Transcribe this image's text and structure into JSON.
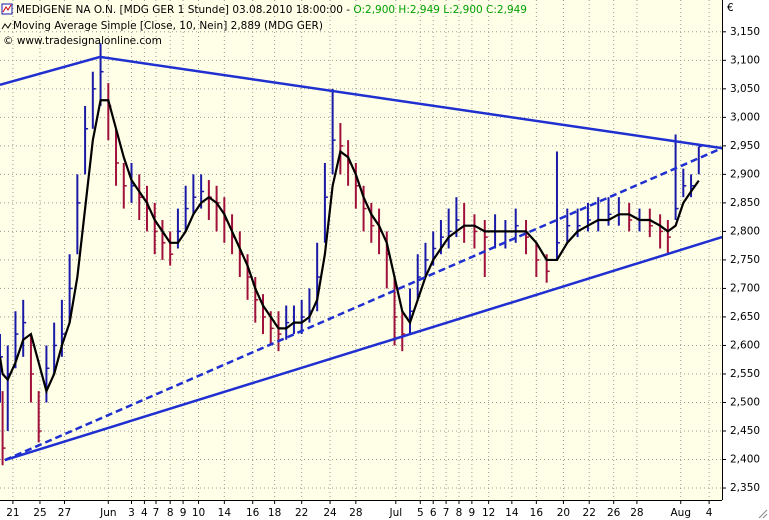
{
  "chart_data": {
    "type": "ohlc",
    "title": "MEDIGENE NA O.N. [MDG GER  1 Stunde] 03.08.2010 18:00:00 - ",
    "title_values": "O:2,900 H:2,949 L:2,900 C:2,949",
    "title_values_color": "#00a000",
    "subtitle": "Moving Average Simple [Close, 10, Nein] 2,889 (MDG GER)",
    "source": "© www.tradesignalonline.com",
    "unit": "€",
    "background": "#ffffe8",
    "grid": true,
    "up_color": "#1a1aa8",
    "down_color": "#a0103c",
    "xlim": [
      0,
      280
    ],
    "ylim": [
      2.329,
      3.197
    ],
    "yticks": [
      {
        "value": 2.35,
        "label": "2,350"
      },
      {
        "value": 2.4,
        "label": "2,400"
      },
      {
        "value": 2.45,
        "label": "2,450"
      },
      {
        "value": 2.5,
        "label": "2,500"
      },
      {
        "value": 2.55,
        "label": "2,550"
      },
      {
        "value": 2.6,
        "label": "2,600"
      },
      {
        "value": 2.65,
        "label": "2,650"
      },
      {
        "value": 2.7,
        "label": "2,700"
      },
      {
        "value": 2.75,
        "label": "2,750"
      },
      {
        "value": 2.8,
        "label": "2,800"
      },
      {
        "value": 2.85,
        "label": "2,850"
      },
      {
        "value": 2.9,
        "label": "2,900"
      },
      {
        "value": 2.95,
        "label": "2,950"
      },
      {
        "value": 3.0,
        "label": "3,000"
      },
      {
        "value": 3.05,
        "label": "3,050"
      },
      {
        "value": 3.1,
        "label": "3,100"
      },
      {
        "value": 3.15,
        "label": "3,150"
      }
    ],
    "xticks": [
      {
        "value": 5,
        "label": "21"
      },
      {
        "value": 15.5,
        "label": "25"
      },
      {
        "value": 25,
        "label": "27"
      },
      {
        "value": 42,
        "label": "Jun"
      },
      {
        "value": 51,
        "label": "3"
      },
      {
        "value": 56,
        "label": "4"
      },
      {
        "value": 60.5,
        "label": "7"
      },
      {
        "value": 66,
        "label": "8"
      },
      {
        "value": 71,
        "label": "9"
      },
      {
        "value": 77,
        "label": "10"
      },
      {
        "value": 87,
        "label": "14"
      },
      {
        "value": 98,
        "label": "16"
      },
      {
        "value": 106.5,
        "label": "18"
      },
      {
        "value": 117,
        "label": "22"
      },
      {
        "value": 128,
        "label": "24"
      },
      {
        "value": 138,
        "label": "28"
      },
      {
        "value": 153.5,
        "label": "Jul"
      },
      {
        "value": 163,
        "label": "5"
      },
      {
        "value": 168,
        "label": "6"
      },
      {
        "value": 173,
        "label": "7"
      },
      {
        "value": 178,
        "label": "8"
      },
      {
        "value": 183,
        "label": "9"
      },
      {
        "value": 189.5,
        "label": "12"
      },
      {
        "value": 198.5,
        "label": "14"
      },
      {
        "value": 208,
        "label": "16"
      },
      {
        "value": 218.5,
        "label": "20"
      },
      {
        "value": 228.5,
        "label": "22"
      },
      {
        "value": 238,
        "label": "26"
      },
      {
        "value": 247,
        "label": "28"
      },
      {
        "value": 264,
        "label": "Aug"
      },
      {
        "value": 275,
        "label": "4"
      }
    ],
    "x": [
      0,
      1,
      3,
      6,
      9,
      12,
      15,
      18,
      21,
      24,
      27,
      30,
      33,
      36,
      39,
      42,
      45,
      48,
      51,
      54,
      57,
      60,
      63,
      66,
      69,
      72,
      75,
      78,
      81,
      84,
      87,
      90,
      93,
      96,
      99,
      102,
      105,
      108,
      111,
      114,
      117,
      120,
      123,
      126,
      129,
      132,
      135,
      138,
      141,
      144,
      147,
      150,
      153,
      156,
      159,
      162,
      165,
      168,
      171,
      174,
      177,
      180,
      184,
      188,
      192,
      196,
      200,
      204,
      208,
      212,
      216,
      220,
      224,
      228,
      232,
      236,
      240,
      244,
      248,
      252,
      256,
      259,
      262,
      265,
      268,
      271
    ],
    "high": [
      2.62,
      2.52,
      2.6,
      2.66,
      2.68,
      2.62,
      2.52,
      2.6,
      2.64,
      2.68,
      2.76,
      2.9,
      3.02,
      3.08,
      3.13,
      3.06,
      2.98,
      2.92,
      2.92,
      2.9,
      2.88,
      2.85,
      2.82,
      2.8,
      2.84,
      2.88,
      2.9,
      2.9,
      2.89,
      2.88,
      2.86,
      2.83,
      2.8,
      2.76,
      2.72,
      2.69,
      2.66,
      2.66,
      2.67,
      2.67,
      2.68,
      2.7,
      2.78,
      2.92,
      3.05,
      2.99,
      2.96,
      2.92,
      2.88,
      2.85,
      2.84,
      2.8,
      2.72,
      2.66,
      2.7,
      2.76,
      2.78,
      2.8,
      2.82,
      2.84,
      2.86,
      2.85,
      2.83,
      2.82,
      2.83,
      2.82,
      2.84,
      2.82,
      2.78,
      2.76,
      2.94,
      2.84,
      2.84,
      2.85,
      2.86,
      2.86,
      2.86,
      2.85,
      2.84,
      2.84,
      2.83,
      2.82,
      2.97,
      2.91,
      2.9,
      2.949
    ],
    "low": [
      2.5,
      2.39,
      2.45,
      2.56,
      2.58,
      2.5,
      2.43,
      2.5,
      2.55,
      2.58,
      2.64,
      2.76,
      2.9,
      2.98,
      3.02,
      2.96,
      2.88,
      2.84,
      2.85,
      2.82,
      2.8,
      2.76,
      2.75,
      2.74,
      2.77,
      2.8,
      2.83,
      2.84,
      2.82,
      2.8,
      2.78,
      2.76,
      2.72,
      2.68,
      2.64,
      2.62,
      2.6,
      2.59,
      2.61,
      2.62,
      2.62,
      2.64,
      2.66,
      2.78,
      2.9,
      2.9,
      2.88,
      2.84,
      2.8,
      2.78,
      2.76,
      2.7,
      2.6,
      2.59,
      2.62,
      2.68,
      2.72,
      2.74,
      2.76,
      2.77,
      2.79,
      2.78,
      2.77,
      2.72,
      2.77,
      2.77,
      2.78,
      2.76,
      2.72,
      2.71,
      2.75,
      2.78,
      2.79,
      2.8,
      2.8,
      2.81,
      2.81,
      2.8,
      2.8,
      2.79,
      2.77,
      2.76,
      2.82,
      2.86,
      2.86,
      2.9
    ],
    "close": [
      2.58,
      2.42,
      2.55,
      2.62,
      2.64,
      2.55,
      2.45,
      2.56,
      2.6,
      2.62,
      2.7,
      2.85,
      2.98,
      3.05,
      3.08,
      3.02,
      2.92,
      2.88,
      2.88,
      2.86,
      2.84,
      2.8,
      2.78,
      2.76,
      2.8,
      2.84,
      2.86,
      2.87,
      2.86,
      2.85,
      2.82,
      2.79,
      2.76,
      2.72,
      2.68,
      2.65,
      2.63,
      2.62,
      2.64,
      2.64,
      2.65,
      2.66,
      2.72,
      2.86,
      2.96,
      2.95,
      2.92,
      2.88,
      2.84,
      2.81,
      2.8,
      2.76,
      2.65,
      2.62,
      2.66,
      2.72,
      2.75,
      2.77,
      2.79,
      2.8,
      2.82,
      2.81,
      2.8,
      2.79,
      2.8,
      2.8,
      2.81,
      2.79,
      2.75,
      2.73,
      2.78,
      2.81,
      2.81,
      2.82,
      2.82,
      2.83,
      2.83,
      2.82,
      2.82,
      2.81,
      2.8,
      2.79,
      2.84,
      2.88,
      2.88,
      2.949
    ],
    "ma": {
      "color": "#000000",
      "values": [
        2.58,
        2.55,
        2.54,
        2.57,
        2.61,
        2.62,
        2.57,
        2.52,
        2.55,
        2.6,
        2.64,
        2.72,
        2.84,
        2.96,
        3.03,
        3.03,
        2.98,
        2.93,
        2.89,
        2.87,
        2.85,
        2.82,
        2.8,
        2.78,
        2.78,
        2.8,
        2.83,
        2.85,
        2.86,
        2.85,
        2.83,
        2.8,
        2.77,
        2.74,
        2.7,
        2.67,
        2.65,
        2.63,
        2.63,
        2.64,
        2.64,
        2.65,
        2.68,
        2.76,
        2.88,
        2.94,
        2.93,
        2.9,
        2.86,
        2.83,
        2.81,
        2.78,
        2.72,
        2.66,
        2.64,
        2.68,
        2.72,
        2.75,
        2.77,
        2.79,
        2.8,
        2.81,
        2.81,
        2.8,
        2.8,
        2.8,
        2.8,
        2.8,
        2.78,
        2.75,
        2.75,
        2.78,
        2.8,
        2.81,
        2.82,
        2.82,
        2.83,
        2.83,
        2.82,
        2.82,
        2.81,
        2.8,
        2.81,
        2.85,
        2.87,
        2.889
      ]
    },
    "trendlines": [
      {
        "x": [
          0,
          38.8,
          280
        ],
        "y": [
          3.057,
          3.106,
          2.946
        ],
        "color": "#1f2fd0",
        "dashed": false
      },
      {
        "x": [
          1.9,
          280
        ],
        "y": [
          2.399,
          2.79
        ],
        "color": "#1f2fd0",
        "dashed": false
      },
      {
        "x": [
          1.9,
          280
        ],
        "y": [
          2.399,
          2.946
        ],
        "color": "#1f2fd0",
        "dashed": true
      }
    ]
  }
}
